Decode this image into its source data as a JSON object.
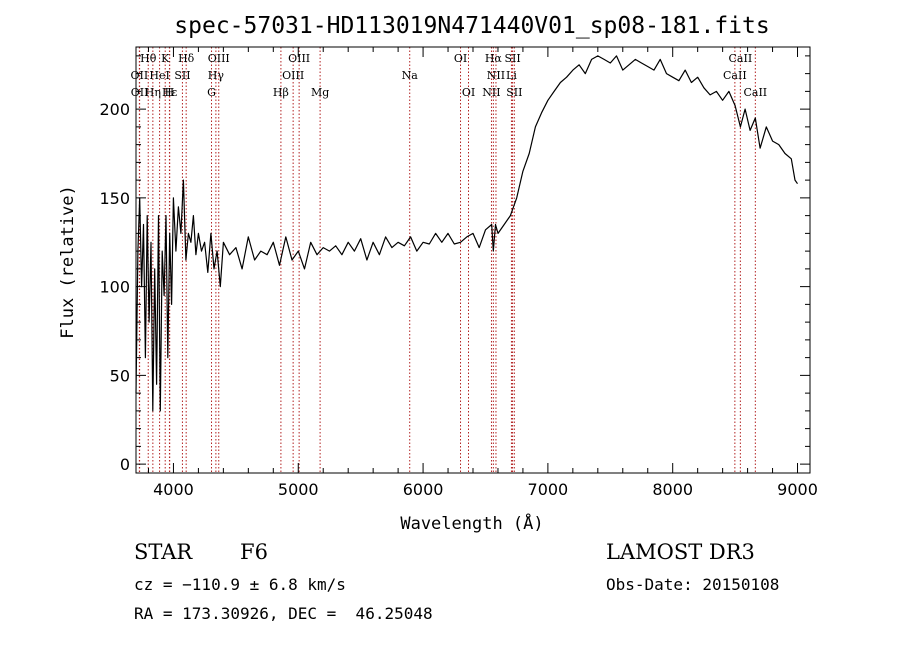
{
  "chart_data": {
    "type": "line",
    "title": "spec-57031-HD113019N471440V01_sp08-181.fits",
    "xlabel": "Wavelength (Å)",
    "ylabel": "Flux (relative)",
    "xlim": [
      3700,
      9100
    ],
    "ylim": [
      -5,
      235
    ],
    "x_ticks": [
      4000,
      5000,
      6000,
      7000,
      8000,
      9000
    ],
    "y_ticks": [
      0,
      50,
      100,
      150,
      200
    ],
    "grid": false,
    "legend": "none",
    "series": [
      {
        "color": "#000000",
        "x": [
          3700,
          3715,
          3730,
          3745,
          3760,
          3775,
          3790,
          3805,
          3820,
          3835,
          3850,
          3865,
          3880,
          3895,
          3910,
          3925,
          3940,
          3955,
          3970,
          3985,
          4000,
          4020,
          4040,
          4060,
          4080,
          4100,
          4120,
          4140,
          4160,
          4180,
          4200,
          4225,
          4250,
          4275,
          4300,
          4325,
          4350,
          4375,
          4400,
          4450,
          4500,
          4550,
          4600,
          4650,
          4700,
          4750,
          4800,
          4850,
          4900,
          4950,
          5000,
          5050,
          5100,
          5150,
          5200,
          5250,
          5300,
          5350,
          5400,
          5450,
          5500,
          5550,
          5600,
          5650,
          5700,
          5750,
          5800,
          5850,
          5900,
          5950,
          6000,
          6050,
          6100,
          6150,
          6200,
          6250,
          6300,
          6350,
          6400,
          6450,
          6500,
          6550,
          6563,
          6580,
          6600,
          6650,
          6700,
          6750,
          6800,
          6850,
          6900,
          6950,
          7000,
          7050,
          7100,
          7150,
          7200,
          7250,
          7300,
          7350,
          7400,
          7450,
          7500,
          7550,
          7600,
          7650,
          7700,
          7750,
          7800,
          7850,
          7900,
          7950,
          8000,
          8050,
          8100,
          8150,
          8200,
          8250,
          8300,
          8350,
          8400,
          8450,
          8500,
          8542,
          8580,
          8620,
          8662,
          8700,
          8750,
          8800,
          8850,
          8900,
          8950,
          8980,
          9000
        ],
        "y": [
          40,
          120,
          150,
          100,
          135,
          60,
          140,
          80,
          125,
          30,
          110,
          45,
          140,
          30,
          120,
          95,
          140,
          60,
          130,
          90,
          150,
          120,
          145,
          130,
          160,
          115,
          130,
          125,
          140,
          118,
          130,
          120,
          125,
          108,
          130,
          110,
          120,
          100,
          125,
          118,
          122,
          110,
          128,
          115,
          120,
          118,
          125,
          112,
          128,
          115,
          120,
          110,
          125,
          118,
          122,
          120,
          123,
          118,
          125,
          120,
          127,
          115,
          125,
          118,
          128,
          122,
          125,
          123,
          128,
          120,
          125,
          124,
          130,
          125,
          130,
          124,
          125,
          128,
          130,
          122,
          132,
          135,
          120,
          135,
          130,
          135,
          140,
          150,
          165,
          175,
          190,
          198,
          205,
          210,
          215,
          218,
          222,
          225,
          220,
          228,
          230,
          228,
          226,
          230,
          222,
          225,
          228,
          226,
          224,
          222,
          228,
          220,
          218,
          216,
          222,
          215,
          218,
          212,
          208,
          210,
          205,
          210,
          202,
          190,
          200,
          188,
          195,
          178,
          190,
          182,
          180,
          175,
          172,
          160,
          158
        ]
      }
    ],
    "line_labels": [
      {
        "text": "Hθ",
        "x": 3798,
        "row": 1
      },
      {
        "text": "K",
        "x": 3934,
        "row": 1
      },
      {
        "text": "Hδ",
        "x": 4102,
        "row": 1
      },
      {
        "text": "OIII",
        "x": 4363,
        "row": 1
      },
      {
        "text": "OIII",
        "x": 5007,
        "row": 1
      },
      {
        "text": "OI",
        "x": 6300,
        "row": 1
      },
      {
        "text": "Hα",
        "x": 6563,
        "row": 1
      },
      {
        "text": "SII",
        "x": 6717,
        "row": 1
      },
      {
        "text": "CaII",
        "x": 8542,
        "row": 1
      },
      {
        "text": "OII",
        "x": 3727,
        "row": 2
      },
      {
        "text": "HeI",
        "x": 3889,
        "row": 2
      },
      {
        "text": "SII",
        "x": 4072,
        "row": 2
      },
      {
        "text": "Hγ",
        "x": 4340,
        "row": 2
      },
      {
        "text": "OIII",
        "x": 4959,
        "row": 2
      },
      {
        "text": "Na",
        "x": 5893,
        "row": 2
      },
      {
        "text": "NII",
        "x": 6584,
        "row": 2
      },
      {
        "text": "Li",
        "x": 6708,
        "row": 2
      },
      {
        "text": "CaII",
        "x": 8498,
        "row": 2
      },
      {
        "text": "OII",
        "x": 3729,
        "row": 3
      },
      {
        "text": "Hε",
        "x": 3970,
        "row": 3
      },
      {
        "text": "Hη",
        "x": 3835,
        "row": 3
      },
      {
        "text": "H",
        "x": 3968,
        "row": 3
      },
      {
        "text": "G",
        "x": 4305,
        "row": 3
      },
      {
        "text": "Hβ",
        "x": 4861,
        "row": 3
      },
      {
        "text": "Mg",
        "x": 5175,
        "row": 3
      },
      {
        "text": "OI",
        "x": 6364,
        "row": 3
      },
      {
        "text": "NII",
        "x": 6548,
        "row": 3
      },
      {
        "text": "SII",
        "x": 6731,
        "row": 3
      },
      {
        "text": "CaII",
        "x": 8662,
        "row": 3
      }
    ],
    "line_color": "#b22222"
  },
  "info": {
    "class": "STAR",
    "subclass": "F6",
    "survey": "LAMOST DR3",
    "cz": "cz = −110.9 ± 6.8 km/s",
    "obs_date": "Obs-Date: 20150108",
    "radec": "RA = 173.30926, DEC =  46.25048"
  }
}
